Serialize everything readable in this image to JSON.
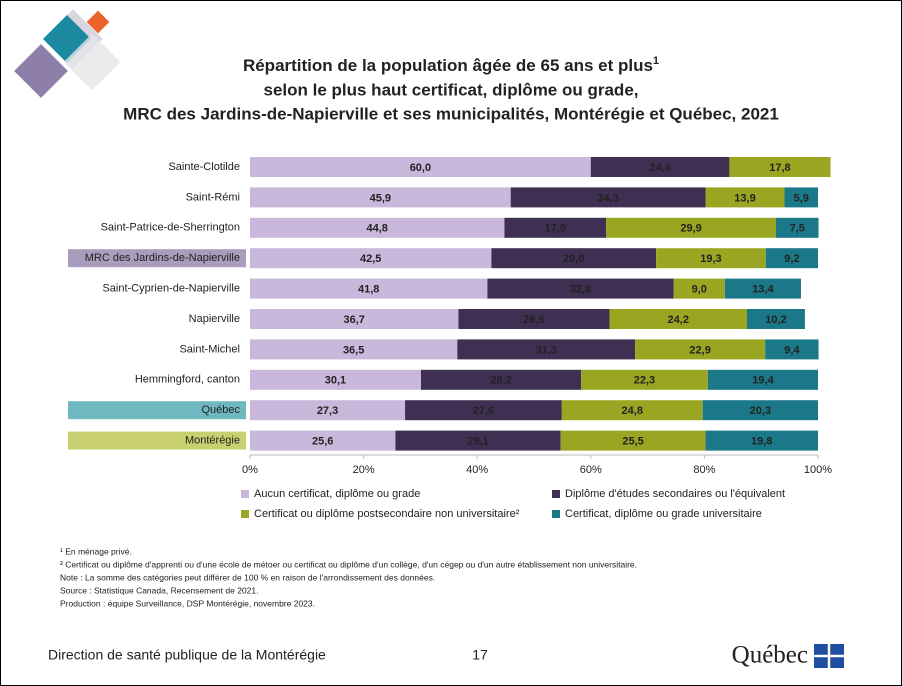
{
  "chart_data": {
    "type": "stacked-barh",
    "title": [
      "Répartition de la population âgée de 65 ans et plus",
      "selon le plus haut certificat, diplôme ou grade,",
      "MRC des Jardins-de-Napierville et ses municipalités, Montérégie et Québec, 2021"
    ],
    "title_superscript": "1",
    "categories": [
      "Sainte-Clotilde",
      "Saint-Rémi",
      "Saint-Patrice-de-Sherrington",
      "MRC des Jardins-de-Napierville",
      "Saint-Cyprien-de-Napierville",
      "Napierville",
      "Saint-Michel",
      "Hemmingford, canton",
      "Québec",
      "Montérégie"
    ],
    "category_colors": [
      null,
      null,
      null,
      "#a99dbb",
      null,
      null,
      null,
      null,
      "#6fb8c0",
      "#c8d070"
    ],
    "series": [
      {
        "name": "Aucun certificat, diplôme ou grade",
        "color": "#c9b8dc",
        "label_color": "#333333",
        "values": [
          60.0,
          45.9,
          44.8,
          42.5,
          41.8,
          36.7,
          36.5,
          30.1,
          27.3,
          25.6
        ],
        "value_labels": [
          "60,0",
          "45,9",
          "44,8",
          "42,5",
          "41,8",
          "36,7",
          "36,5",
          "30,1",
          "27,3",
          "25,6"
        ]
      },
      {
        "name": "Diplôme d'études secondaires ou l'équivalent",
        "color": "#3f2f52",
        "label_color": "#ffffff",
        "values": [
          24.4,
          34.3,
          17.9,
          29.0,
          32.8,
          26.6,
          31.3,
          28.2,
          27.6,
          29.1
        ],
        "value_labels": [
          "24,4",
          "34,3",
          "17,9",
          "29,0",
          "32,8",
          "26,6",
          "31,3",
          "28,2",
          "27,6",
          "29,1"
        ]
      },
      {
        "name": "Certificat ou diplôme postsecondaire non universitaire²",
        "color": "#9aa621",
        "label_color": "#ffffff",
        "values": [
          17.8,
          13.9,
          29.9,
          19.3,
          9.0,
          24.2,
          22.9,
          22.3,
          24.8,
          25.5
        ],
        "value_labels": [
          "17,8",
          "13,9",
          "29,9",
          "19,3",
          "9,0",
          "24,2",
          "22,9",
          "22,3",
          "24,8",
          "25,5"
        ]
      },
      {
        "name": "Certificat, diplôme ou grade universitaire",
        "color": "#1b7888",
        "label_color": "#ffffff",
        "values": [
          null,
          5.9,
          7.5,
          9.2,
          13.4,
          10.2,
          9.4,
          19.4,
          20.3,
          19.8
        ],
        "value_labels": [
          null,
          "5,9",
          "7,5",
          "9,2",
          "13,4",
          "10,2",
          "9,4",
          "19,4",
          "20,3",
          "19,8"
        ]
      }
    ],
    "xlim": [
      0,
      100
    ],
    "xticks": [
      {
        "value": 0,
        "label": "0%"
      },
      {
        "value": 20,
        "label": "20%"
      },
      {
        "value": 40,
        "label": "40%"
      },
      {
        "value": 60,
        "label": "60%"
      },
      {
        "value": 80,
        "label": "80%"
      },
      {
        "value": 100,
        "label": "100%"
      }
    ],
    "legend": "bottom"
  },
  "footnotes": [
    "¹ En ménage privé.",
    "² Certificat ou diplôme d'apprenti ou d'une école de métoer ou certificat ou diplôme d'un collège, d'un cégep ou d'un autre établissement non universitaire.",
    "Note : La somme des catégories peut différer de 100 % en raison de l'arrondissement des données.",
    "Source : Statistique Canada, Recensement de 2021.",
    "Production : équipe Surveillance, DSP Montérégie, novembre 2023."
  ],
  "footer": {
    "organization": "Direction de santé publique de la Montérégie",
    "page": "17",
    "logo": "Québec"
  }
}
